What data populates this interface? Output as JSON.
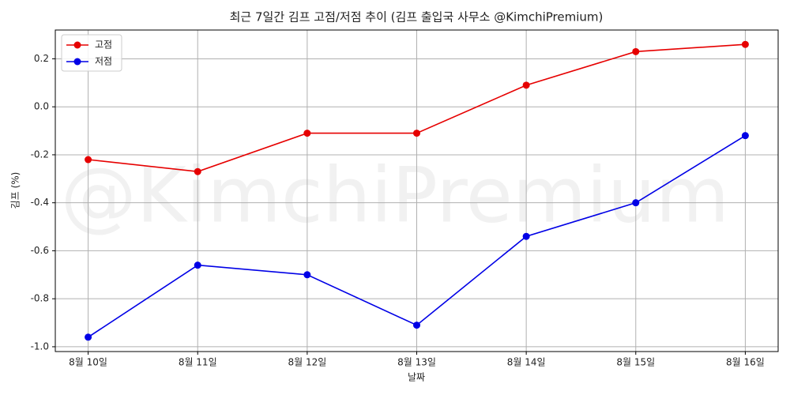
{
  "chart_data": {
    "type": "line",
    "title": "최근 7일간 김프 고점/저점 추이 (김프 출입국 사무소 @KimchiPremium)",
    "watermark": "@KimchiPremium",
    "xlabel": "날짜",
    "ylabel": "김프 (%)",
    "categories": [
      "8월 10일",
      "8월 11일",
      "8월 12일",
      "8월 13일",
      "8월 14일",
      "8월 15일",
      "8월 16일"
    ],
    "series": [
      {
        "name": "고점",
        "color": "#e60000",
        "values": [
          -0.22,
          -0.27,
          -0.11,
          -0.11,
          0.09,
          0.23,
          0.26
        ]
      },
      {
        "name": "저점",
        "color": "#0000e6",
        "values": [
          -0.96,
          -0.66,
          -0.7,
          -0.91,
          -0.54,
          -0.4,
          -0.12
        ]
      }
    ],
    "ylim": [
      -1.02,
      0.32
    ],
    "yticks": [
      {
        "value": -1.0,
        "label": "-1.0"
      },
      -0.8,
      -0.6,
      -0.4,
      -0.2,
      {
        "value": 0,
        "label": "0.0"
      },
      0.2
    ],
    "grid": true,
    "legend": "upper-left"
  }
}
